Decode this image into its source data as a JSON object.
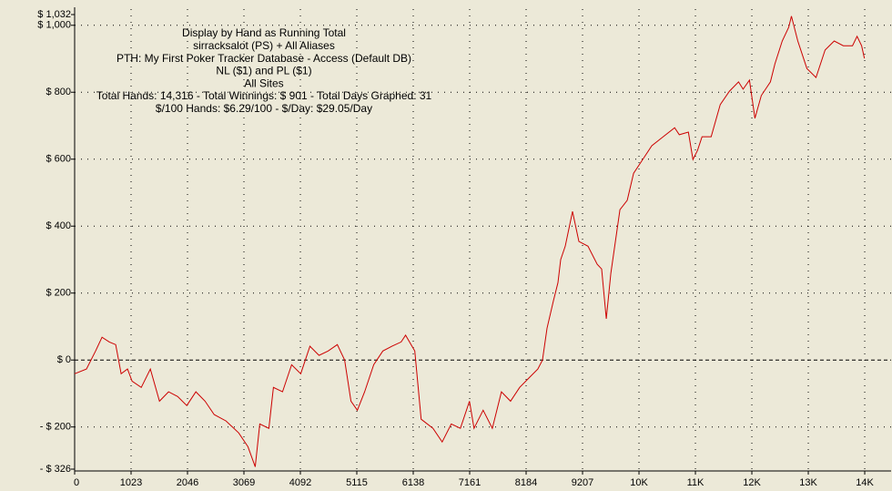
{
  "chart_data": {
    "type": "line",
    "annotations": [
      "Display by Hand as Running Total",
      "sirracksalot (PS) + All Aliases",
      "PTH: My First Poker Tracker Database - Access (Default DB)",
      "NL ($1) and PL ($1)",
      "All Sites",
      "Total Hands: 14,316 - Total Winnings: $ 901 - Total Days Graphed: 31",
      "$/100 Hands: $6.29/100 - $/Day: $29.05/Day"
    ],
    "xlim": [
      0,
      14800
    ],
    "ylim": [
      -326,
      1032
    ],
    "xticks": [
      0,
      1023,
      2046,
      3069,
      4092,
      5115,
      6138,
      7161,
      8184,
      9207,
      {
        "value": 10230,
        "label": "10K"
      },
      {
        "value": 11253,
        "label": "11K"
      },
      {
        "value": 12276,
        "label": "12K"
      },
      {
        "value": 13299,
        "label": "13K"
      },
      {
        "value": 14322,
        "label": "14K"
      }
    ],
    "yticks": [
      {
        "value": -326,
        "label": "- $ 326"
      },
      {
        "value": -200,
        "label": "- $ 200"
      },
      {
        "value": 0,
        "label": "$ 0"
      },
      {
        "value": 200,
        "label": "$ 200"
      },
      {
        "value": 400,
        "label": "$ 400"
      },
      {
        "value": 600,
        "label": "$ 600"
      },
      {
        "value": 800,
        "label": "$ 800"
      },
      {
        "value": 1000,
        "label": "$ 1,000"
      },
      {
        "value": 1032,
        "label": "$ 1,032"
      }
    ],
    "grid": true,
    "series": [
      {
        "color": "#cc0000",
        "x": [
          0,
          215,
          380,
          496,
          628,
          744,
          843,
          959,
          1041,
          1207,
          1372,
          1537,
          1703,
          1868,
          2033,
          2198,
          2364,
          2529,
          2744,
          2975,
          3141,
          3273,
          3356,
          3521,
          3604,
          3769,
          3934,
          4099,
          4265,
          4430,
          4595,
          4761,
          4893,
          5009,
          5124,
          5257,
          5422,
          5587,
          5752,
          5918,
          6000,
          6166,
          6281,
          6496,
          6662,
          6827,
          6992,
          7157,
          7240,
          7405,
          7571,
          7736,
          7901,
          8067,
          8232,
          8397,
          8480,
          8563,
          8678,
          8761,
          8810,
          8893,
          9025,
          9141,
          9306,
          9472,
          9554,
          9637,
          9720,
          9885,
          10017,
          10133,
          10298,
          10463,
          10629,
          10877,
          10960,
          11125,
          11208,
          11290,
          11373,
          11538,
          11703,
          11869,
          12034,
          12117,
          12232,
          12331,
          12447,
          12612,
          12695,
          12827,
          12943,
          12993,
          13108,
          13273,
          13439,
          13604,
          13769,
          13934,
          14100,
          14183,
          14265,
          14316
        ],
        "values": [
          -41,
          -27,
          27,
          68,
          54,
          46,
          -41,
          -27,
          -63,
          -82,
          -27,
          -123,
          -95,
          -109,
          -136,
          -95,
          -123,
          -163,
          -182,
          -218,
          -259,
          -319,
          -191,
          -204,
          -82,
          -95,
          -14,
          -41,
          41,
          14,
          27,
          46,
          0,
          -123,
          -150,
          -95,
          -14,
          27,
          41,
          54,
          74,
          27,
          -177,
          -204,
          -245,
          -191,
          -204,
          -123,
          -204,
          -150,
          -204,
          -95,
          -123,
          -82,
          -54,
          -27,
          0,
          95,
          177,
          231,
          300,
          340,
          444,
          354,
          340,
          286,
          272,
          123,
          259,
          449,
          477,
          558,
          599,
          640,
          662,
          694,
          673,
          681,
          599,
          626,
          667,
          667,
          763,
          803,
          831,
          809,
          836,
          722,
          790,
          831,
          885,
          953,
          994,
          1027,
          953,
          871,
          844,
          926,
          953,
          939,
          939,
          967,
          939,
          901
        ]
      }
    ]
  }
}
